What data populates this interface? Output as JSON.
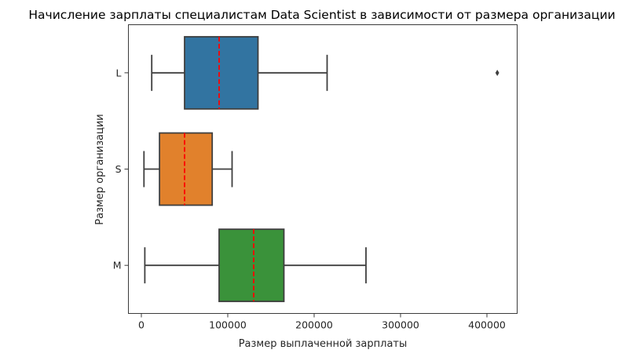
{
  "chart_data": {
    "type": "box",
    "orientation": "horizontal",
    "title": "Начисление зарплаты специалистам Data Scientist в зависимости от размера организации",
    "xlabel": "Размер выплаченной зарплаты",
    "ylabel": "Размер организации",
    "xlim": [
      -15000,
      435000
    ],
    "xticks": [
      0,
      100000,
      200000,
      300000,
      400000
    ],
    "xtick_labels": [
      "0",
      "100000",
      "200000",
      "300000",
      "400000"
    ],
    "categories": [
      "L",
      "S",
      "M"
    ],
    "mean_line_color": "#ff0000",
    "series": [
      {
        "category": "L",
        "whisker_low": 12000,
        "q1": 50000,
        "mean": 90000,
        "q3": 135000,
        "whisker_high": 215000,
        "outliers": [
          412000
        ],
        "color": "#3274a1"
      },
      {
        "category": "S",
        "whisker_low": 3000,
        "q1": 21000,
        "mean": 50000,
        "q3": 82000,
        "whisker_high": 105000,
        "outliers": [],
        "color": "#e1812c"
      },
      {
        "category": "M",
        "whisker_low": 4000,
        "q1": 90000,
        "mean": 130000,
        "q3": 165000,
        "whisker_high": 260000,
        "outliers": [],
        "color": "#3a923a"
      }
    ],
    "grid": false,
    "legend": "none"
  }
}
